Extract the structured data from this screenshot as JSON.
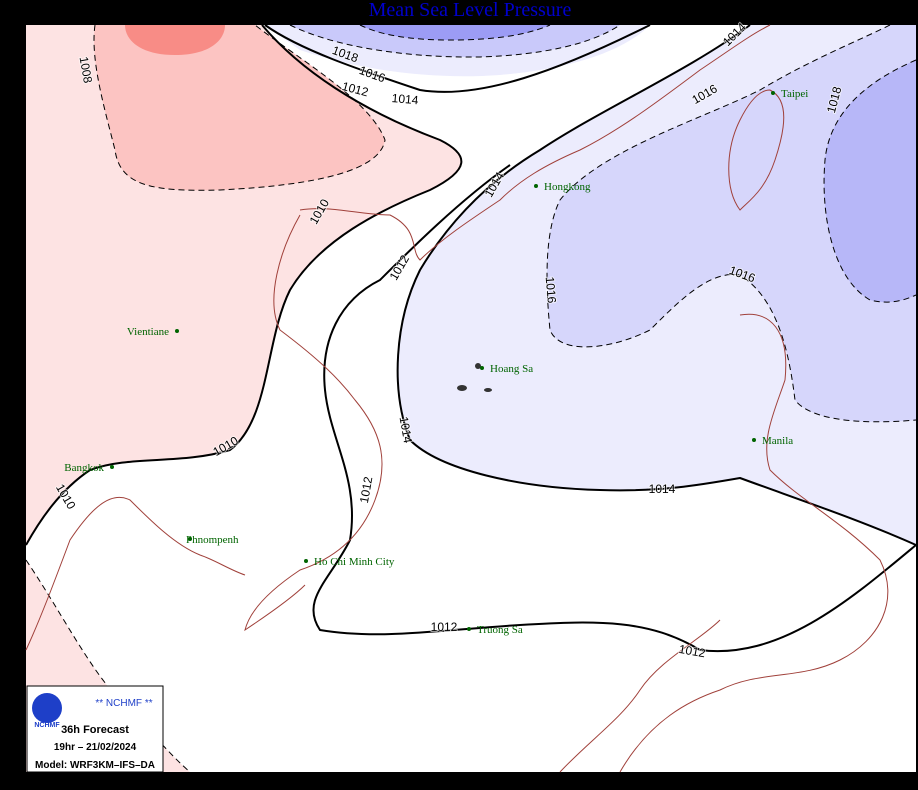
{
  "header": {
    "title": "Mean Sea Level Pressure"
  },
  "isobar_labels": [
    "1008",
    "1018",
    "1016",
    "1012",
    "1014",
    "1014",
    "1016",
    "1018",
    "1014",
    "1012",
    "1010",
    "1016",
    "1016",
    "1014",
    "1014",
    "1012",
    "1010",
    "1010",
    "1012",
    "1012"
  ],
  "places": [
    "Taipei",
    "Hongkong",
    "Vientiane",
    "Hoang Sa",
    "Manila",
    "Bangkok",
    "Phnompenh",
    "Ho Chi Minh City",
    "Truong Sa"
  ],
  "info_box": {
    "agency": "** NCHMF **",
    "logo": "NCHMF",
    "forecast": "36h Forecast",
    "valid_time": "19hr – 21/02/2024",
    "model": "Model: WRF3KM–IFS–DA"
  }
}
